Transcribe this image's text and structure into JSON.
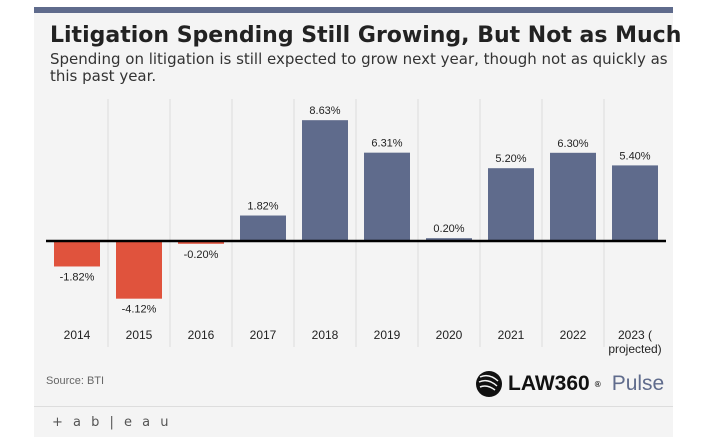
{
  "title": "Litigation Spending Still Growing, But Not as Much",
  "subtitle": "Spending on litigation is still expected to grow next year, though not as quickly as this past year.",
  "source": "Source: BTI",
  "logo": {
    "law": "LAW360",
    "reg": "®",
    "pulse": "Pulse"
  },
  "footer": {
    "tableau": "+ a b | e a u"
  },
  "colors": {
    "positive": "#5f6b8c",
    "negative": "#e0533d",
    "accent": "#5f6b8c"
  },
  "chart_data": {
    "type": "bar",
    "categories": [
      "2014",
      "2015",
      "2016",
      "2017",
      "2018",
      "2019",
      "2020",
      "2021",
      "2022",
      "2023 ( projected)"
    ],
    "values": [
      -1.82,
      -4.12,
      -0.2,
      1.82,
      8.63,
      6.31,
      0.2,
      5.2,
      6.3,
      5.4
    ],
    "labels": [
      "-1.82%",
      "-4.12%",
      "-0.20%",
      "1.82%",
      "8.63%",
      "6.31%",
      "0.20%",
      "5.20%",
      "6.30%",
      "5.40%"
    ],
    "title": "Litigation Spending Still Growing, But Not as Much",
    "xlabel": "",
    "ylabel": "",
    "grid": "vertical"
  }
}
